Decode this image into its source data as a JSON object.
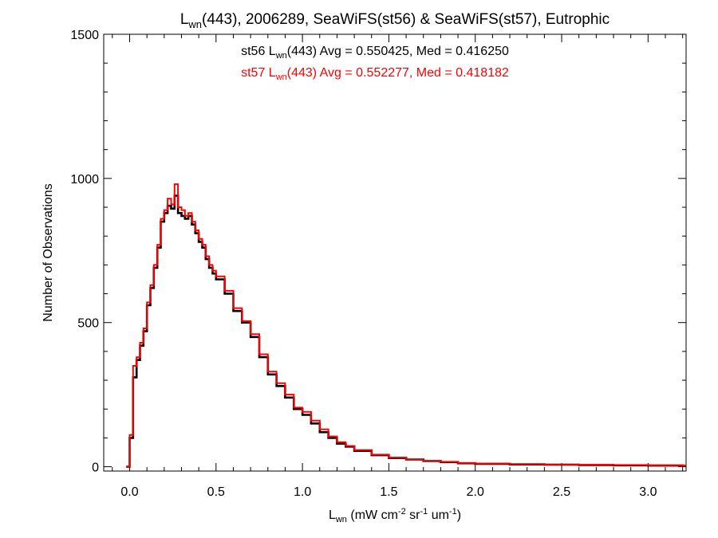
{
  "chart_data": {
    "type": "line",
    "title": {
      "main": "L",
      "sub": "wn",
      "rest": "(443), 2006289, SeaWiFS(st56) & SeaWiFS(st57), Eutrophic"
    },
    "xlabel": {
      "main": "L",
      "sub": "wn",
      "p1": " (mW cm",
      "sup1": "-2",
      "p2": " sr",
      "sup2": "-1",
      "p3": " um",
      "sup3": "-1",
      "p4": ")"
    },
    "ylabel": "Number of Observations",
    "xlim": [
      -0.15,
      3.22
    ],
    "ylim": [
      -15,
      1500
    ],
    "xticks": [
      0.0,
      0.5,
      1.0,
      1.5,
      2.0,
      2.5,
      3.0
    ],
    "xtick_labels": [
      "0.0",
      "0.5",
      "1.0",
      "1.5",
      "2.0",
      "2.5",
      "3.0"
    ],
    "yticks": [
      0,
      500,
      1000,
      1500
    ],
    "ytick_labels": [
      "0",
      "500",
      "1000",
      "1500"
    ],
    "x_minor_step": 0.1,
    "y_minor_step": 100,
    "grid": false,
    "annotations": [
      {
        "series": "st56",
        "color": "#000000",
        "pre": "st56 L",
        "sub": "wn",
        "post": "(443) Avg = 0.550425, Med = 0.416250"
      },
      {
        "series": "st57",
        "color": "#ff0000",
        "pre": "st57 L",
        "sub": "wn",
        "post": "(443) Avg = 0.552277, Med = 0.418182"
      }
    ],
    "series": [
      {
        "name": "st56",
        "color": "#000000",
        "x": [
          -0.02,
          0.0,
          0.02,
          0.04,
          0.06,
          0.08,
          0.1,
          0.12,
          0.14,
          0.16,
          0.18,
          0.2,
          0.22,
          0.24,
          0.26,
          0.28,
          0.3,
          0.32,
          0.34,
          0.36,
          0.38,
          0.4,
          0.42,
          0.44,
          0.46,
          0.48,
          0.5,
          0.55,
          0.6,
          0.65,
          0.7,
          0.75,
          0.8,
          0.85,
          0.9,
          0.95,
          1.0,
          1.05,
          1.1,
          1.15,
          1.2,
          1.25,
          1.3,
          1.4,
          1.5,
          1.6,
          1.7,
          1.8,
          1.9,
          2.0,
          2.2,
          2.4,
          2.6,
          2.8,
          3.0,
          3.2
        ],
        "y": [
          0,
          100,
          310,
          370,
          420,
          470,
          560,
          620,
          690,
          760,
          850,
          880,
          905,
          895,
          940,
          880,
          870,
          860,
          870,
          840,
          810,
          780,
          760,
          720,
          690,
          670,
          650,
          600,
          540,
          500,
          450,
          380,
          320,
          280,
          240,
          200,
          180,
          150,
          120,
          100,
          80,
          70,
          55,
          40,
          30,
          25,
          20,
          16,
          12,
          10,
          8,
          7,
          6,
          5,
          4,
          3
        ]
      },
      {
        "name": "st57",
        "color": "#ff0000",
        "x": [
          -0.02,
          0.0,
          0.02,
          0.04,
          0.06,
          0.08,
          0.1,
          0.12,
          0.14,
          0.16,
          0.18,
          0.2,
          0.22,
          0.24,
          0.26,
          0.28,
          0.3,
          0.32,
          0.34,
          0.36,
          0.38,
          0.4,
          0.42,
          0.44,
          0.46,
          0.48,
          0.5,
          0.55,
          0.6,
          0.65,
          0.7,
          0.75,
          0.8,
          0.85,
          0.9,
          0.95,
          1.0,
          1.05,
          1.1,
          1.15,
          1.2,
          1.25,
          1.3,
          1.4,
          1.5,
          1.6,
          1.7,
          1.8,
          1.9,
          2.0,
          2.2,
          2.4,
          2.6,
          2.8,
          3.0,
          3.2
        ],
        "y": [
          0,
          110,
          350,
          380,
          430,
          480,
          570,
          630,
          700,
          770,
          860,
          890,
          930,
          910,
          980,
          900,
          890,
          870,
          880,
          850,
          820,
          790,
          770,
          730,
          700,
          680,
          660,
          610,
          550,
          505,
          460,
          390,
          330,
          290,
          250,
          205,
          190,
          160,
          130,
          105,
          85,
          72,
          58,
          42,
          32,
          26,
          21,
          17,
          13,
          11,
          9,
          8,
          7,
          6,
          5,
          4
        ]
      }
    ]
  }
}
